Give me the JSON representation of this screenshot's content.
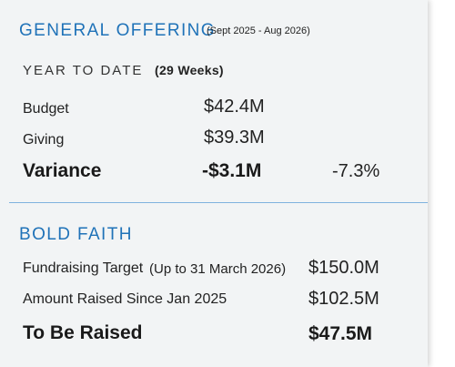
{
  "general_offering": {
    "title": "GENERAL OFFERING",
    "period": "(Sept 2025 - Aug 2026)",
    "ytd_label": "YEAR TO DATE",
    "ytd_weeks": "(29 Weeks)",
    "rows": [
      {
        "label": "Budget",
        "value": "$42.4M"
      },
      {
        "label": "Giving",
        "value": "$39.3M"
      }
    ],
    "variance": {
      "label": "Variance",
      "value": "-$3.1M",
      "percent": "-7.3%"
    }
  },
  "bold_faith": {
    "title": "BOLD FAITH",
    "target": {
      "label": "Fundraising Target",
      "note": "(Up to 31 March 2026)",
      "value": "$150.0M"
    },
    "raised": {
      "label": "Amount Raised Since Jan 2025",
      "value": "$102.5M"
    },
    "remaining": {
      "label": "To Be Raised",
      "value": "$47.5M"
    }
  },
  "colors": {
    "accent": "#1f72b8",
    "divider": "#7fb2de",
    "panel": "#f2f4f5"
  }
}
